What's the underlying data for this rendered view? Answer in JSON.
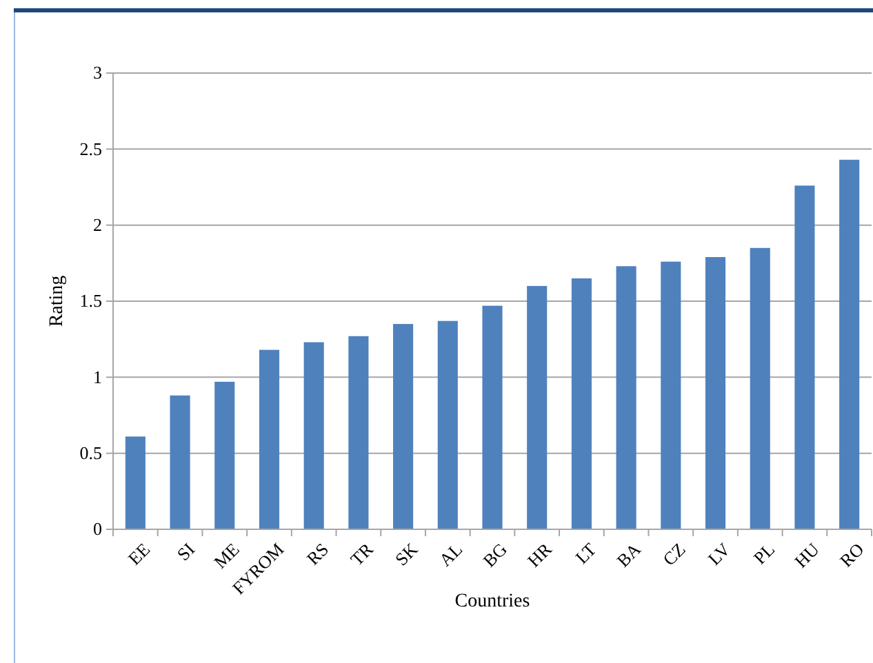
{
  "chart_data": {
    "type": "bar",
    "xlabel": "Countries",
    "ylabel": "Rating",
    "categories": [
      "EE",
      "SI",
      "ME",
      "FYROM",
      "RS",
      "TR",
      "SK",
      "AL",
      "BG",
      "HR",
      "LT",
      "BA",
      "CZ",
      "LV",
      "PL",
      "HU",
      "RO"
    ],
    "values": [
      0.61,
      0.88,
      0.97,
      1.18,
      1.23,
      1.27,
      1.35,
      1.37,
      1.47,
      1.6,
      1.65,
      1.73,
      1.76,
      1.79,
      1.85,
      2.26,
      2.43
    ],
    "color": "#4f81bd",
    "ylim": [
      0,
      3
    ],
    "yticks": [
      0,
      0.5,
      1,
      1.5,
      2,
      2.5,
      3
    ],
    "grid": "y"
  }
}
